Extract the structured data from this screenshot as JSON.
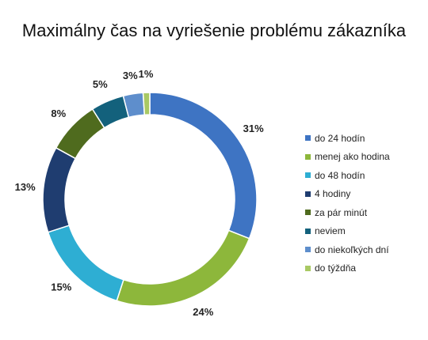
{
  "chart_data": {
    "type": "pie",
    "title": "Maximálny čas na vyriešenie problému zákazníka",
    "legend_position": "right",
    "donut": true,
    "slices": [
      {
        "label": "do 24 hodín",
        "value": 31,
        "value_label": "31%",
        "color": "#3E74C3"
      },
      {
        "label": "menej ako hodina",
        "value": 24,
        "value_label": "24%",
        "color": "#8DB73B"
      },
      {
        "label": "do 48 hodín",
        "value": 15,
        "value_label": "15%",
        "color": "#2EAED3"
      },
      {
        "label": "4 hodiny",
        "value": 13,
        "value_label": "13%",
        "color": "#1F3D70"
      },
      {
        "label": "za pár minút",
        "value": 8,
        "value_label": "8%",
        "color": "#4F6B1E"
      },
      {
        "label": "neviem",
        "value": 5,
        "value_label": "5%",
        "color": "#13617C"
      },
      {
        "label": "do niekoľkých dní",
        "value": 3,
        "value_label": "3%",
        "color": "#5E8ECC"
      },
      {
        "label": "do týždňa",
        "value": 1,
        "value_label": "1%",
        "color": "#A9C964"
      }
    ]
  }
}
